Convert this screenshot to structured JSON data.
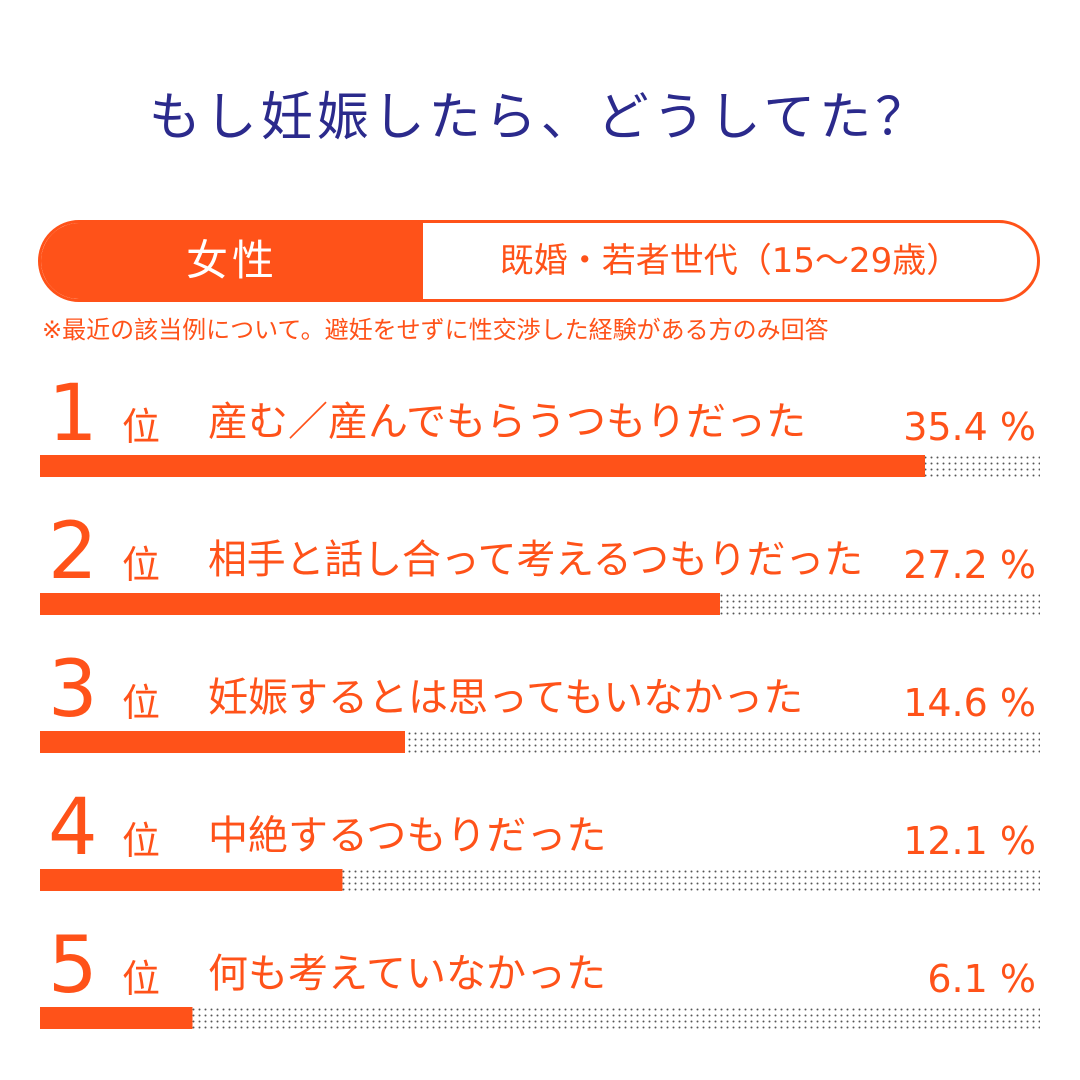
{
  "title": "もし妊娠したら、どうしてた？",
  "badge": {
    "gender": "女性",
    "group": "既婚・若者世代（15〜29歳）"
  },
  "note": "※最近の該当例について。避妊をせずに性交渉した経験がある方のみ回答",
  "colors": {
    "accent": "#ff5219",
    "title": "#2b2a8c",
    "dots": "#555555"
  },
  "chart_data": {
    "type": "bar",
    "orientation": "horizontal",
    "unit": "%",
    "rank_suffix": "位",
    "xlim": [
      0,
      40
    ],
    "categories": [
      "産む／産んでもらうつもりだった",
      "相手と話し合って考えるつもりだった",
      "妊娠するとは思ってもいなかった",
      "中絶するつもりだった",
      "何も考えていなかった"
    ],
    "ranks": [
      "1",
      "2",
      "3",
      "4",
      "5"
    ],
    "values": [
      35.4,
      27.2,
      14.6,
      12.1,
      6.1
    ],
    "value_labels": [
      "35.4 %",
      "27.2 %",
      "14.6 %",
      "12.1 %",
      "6.1 %"
    ]
  }
}
